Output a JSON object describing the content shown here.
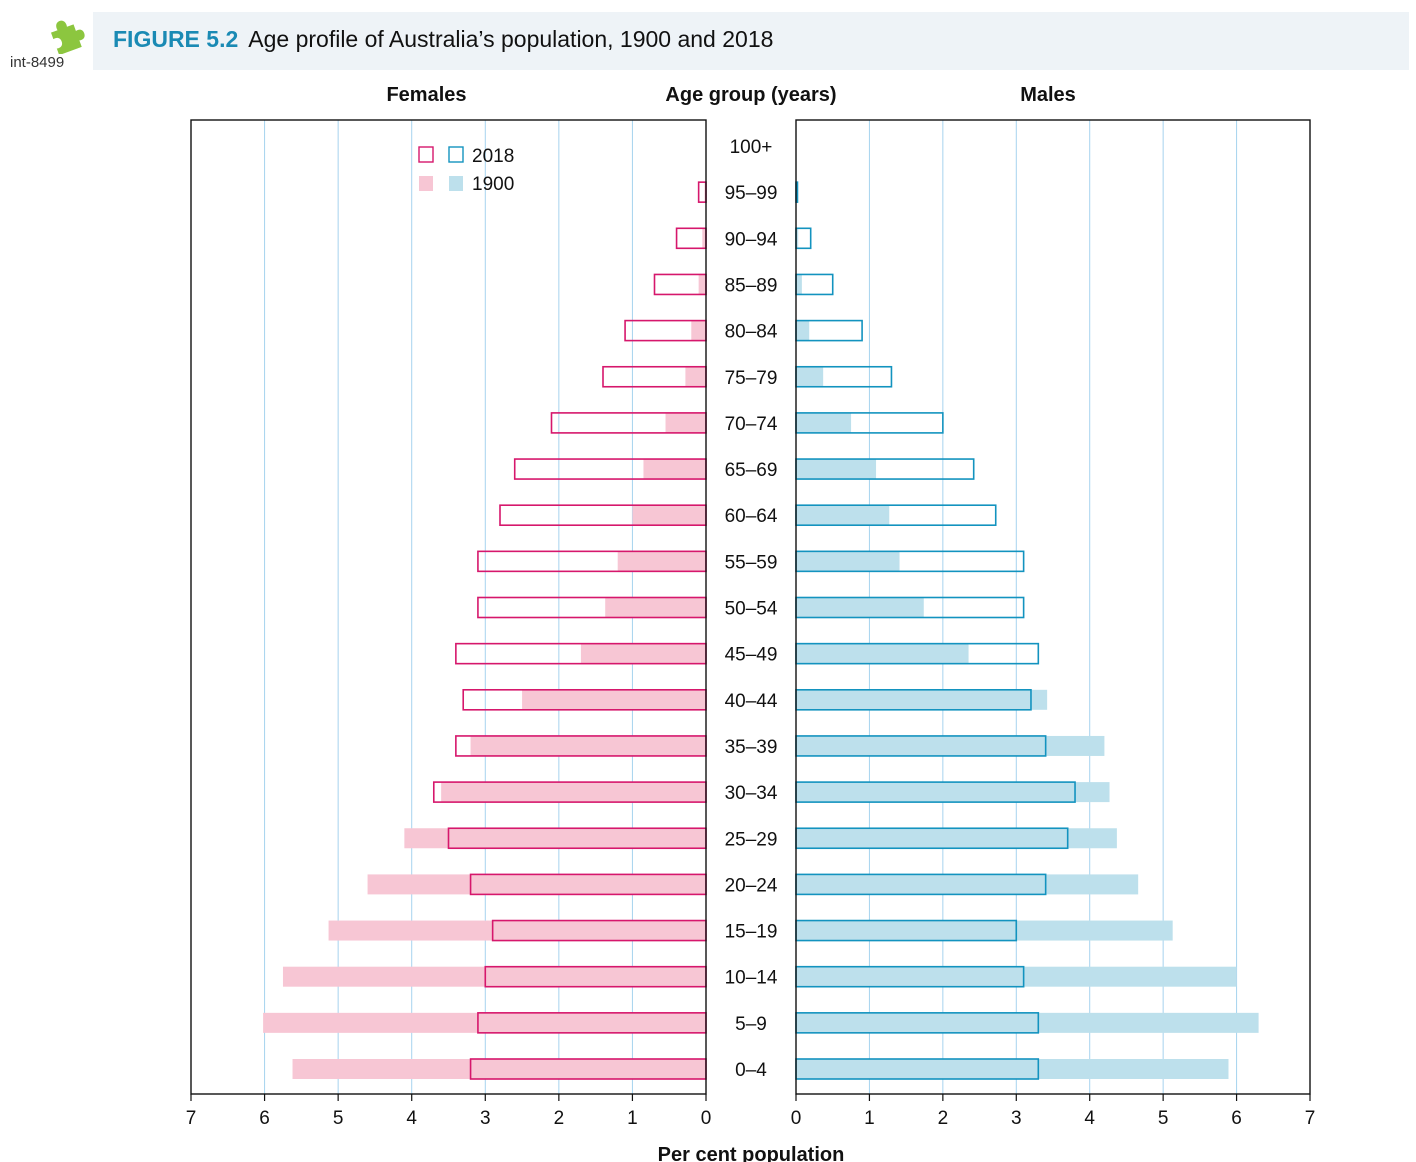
{
  "header": {
    "tag": "int-8499",
    "figure_number": "FIGURE 5.2",
    "figure_title": "Age profile of Australia’s population, 1900 and 2018"
  },
  "colors": {
    "female_1900_fill": "#f7c6d4",
    "female_2018_stroke": "#d6176c",
    "male_1900_fill": "#bde0ec",
    "male_2018_stroke": "#1393bf",
    "grid": "#a6d3ee",
    "accent": "#1a8ab4",
    "icon": "#8cc63f"
  },
  "chart_data": {
    "type": "bar",
    "subtype": "population-pyramid",
    "headers": {
      "left": "Females",
      "center": "Age group (years)",
      "right": "Males"
    },
    "xlabel": "Per cent population",
    "xlim": [
      0,
      7
    ],
    "xticks": [
      "7",
      "6",
      "5",
      "4",
      "3",
      "2",
      "1",
      "0",
      "0",
      "1",
      "2",
      "3",
      "4",
      "5",
      "6",
      "7"
    ],
    "legend": {
      "position": "top-left",
      "entries": [
        "2018",
        "1900"
      ]
    },
    "grid": true,
    "categories": [
      "100+",
      "95–99",
      "90–94",
      "85–89",
      "80–84",
      "75–79",
      "70–74",
      "65–69",
      "60–64",
      "55–59",
      "50–54",
      "45–49",
      "40–44",
      "35–39",
      "30–34",
      "25–29",
      "20–24",
      "15–19",
      "10–14",
      "5–9",
      "0–4"
    ],
    "series": [
      {
        "name": "1900",
        "sex": "Females",
        "style": "filled",
        "values": [
          0,
          0.02,
          0.05,
          0.1,
          0.2,
          0.28,
          0.55,
          0.85,
          1.0,
          1.2,
          1.37,
          1.7,
          2.5,
          3.2,
          3.6,
          4.1,
          4.6,
          5.13,
          5.75,
          6.02,
          5.62
        ]
      },
      {
        "name": "2018",
        "sex": "Females",
        "style": "outline",
        "values": [
          0,
          0.1,
          0.4,
          0.7,
          1.1,
          1.4,
          2.1,
          2.6,
          2.8,
          3.1,
          3.1,
          3.4,
          3.3,
          3.4,
          3.7,
          3.5,
          3.2,
          2.9,
          3.0,
          3.1,
          3.2
        ]
      },
      {
        "name": "1900",
        "sex": "Males",
        "style": "filled",
        "values": [
          0,
          0.01,
          0.03,
          0.08,
          0.18,
          0.37,
          0.75,
          1.09,
          1.27,
          1.41,
          1.74,
          2.35,
          3.42,
          4.2,
          4.27,
          4.37,
          4.66,
          5.13,
          6.0,
          6.3,
          5.89
        ]
      },
      {
        "name": "2018",
        "sex": "Males",
        "style": "outline",
        "values": [
          0,
          0.02,
          0.2,
          0.5,
          0.9,
          1.3,
          2.0,
          2.42,
          2.72,
          3.1,
          3.1,
          3.3,
          3.2,
          3.4,
          3.8,
          3.7,
          3.4,
          3.0,
          3.1,
          3.3,
          3.3
        ]
      }
    ]
  }
}
